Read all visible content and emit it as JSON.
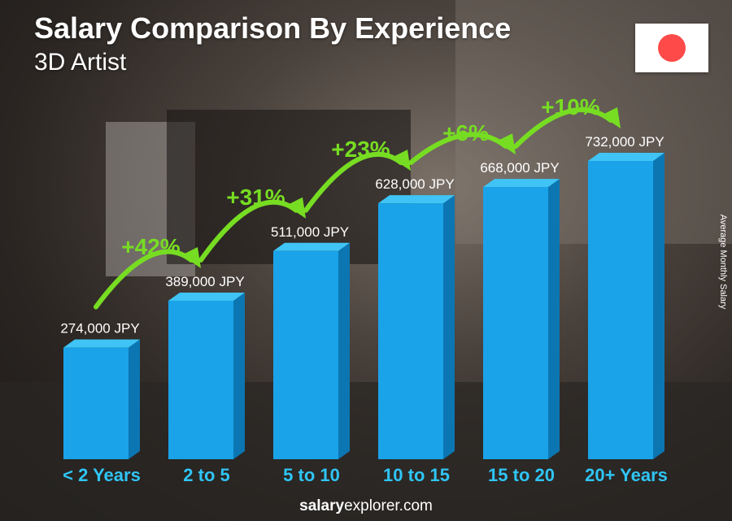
{
  "header": {
    "title": "Salary Comparison By Experience",
    "subtitle": "3D Artist"
  },
  "flag": {
    "country": "Japan",
    "icon": "japan-flag-icon",
    "disc_color": "#ff4a4a"
  },
  "side_label": "Average Monthly Salary",
  "footer": {
    "brand": "salary",
    "rest": "explorer.com"
  },
  "colors": {
    "bar_front": "#1aa3e8",
    "bar_side": "#0c76b3",
    "bar_top": "#3fc4f5",
    "accent_green": "#77dd22",
    "category_text": "#2fc5f5"
  },
  "chart_data": {
    "type": "bar",
    "categories": [
      "< 2 Years",
      "2 to 5",
      "5 to 10",
      "10 to 15",
      "15 to 20",
      "20+ Years"
    ],
    "values": [
      274000,
      389000,
      511000,
      628000,
      668000,
      732000
    ],
    "value_labels": [
      "274,000 JPY",
      "389,000 JPY",
      "511,000 JPY",
      "628,000 JPY",
      "668,000 JPY",
      "732,000 JPY"
    ],
    "changes": [
      "+42%",
      "+31%",
      "+23%",
      "+6%",
      "+10%"
    ],
    "unit": "JPY",
    "ylabel": "Average Monthly Salary"
  }
}
